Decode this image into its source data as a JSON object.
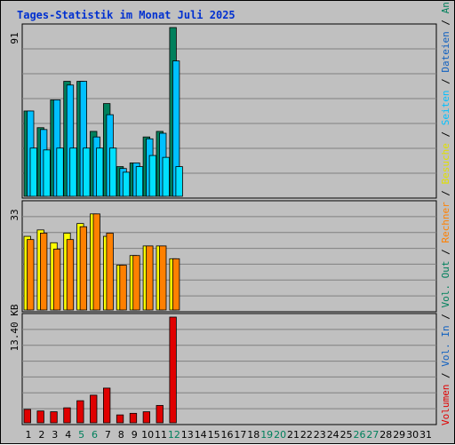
{
  "chart_data": {
    "type": "bar",
    "title": "Tages-Statistik im Monat Juli 2025",
    "categories": [
      "1",
      "2",
      "3",
      "4",
      "5",
      "6",
      "7",
      "8",
      "9",
      "10",
      "11",
      "12",
      "13",
      "14",
      "15",
      "16",
      "17",
      "18",
      "19",
      "20",
      "21",
      "22",
      "23",
      "24",
      "25",
      "26",
      "27",
      "28",
      "29",
      "30",
      "31"
    ],
    "weekend_days": [
      "5",
      "6",
      "12",
      "19",
      "20",
      "26",
      "27"
    ],
    "panels": [
      {
        "id": "requests",
        "axis_max_label": "91",
        "ylim": [
          0,
          91
        ],
        "grid": true,
        "series": [
          {
            "name": "Anfragen",
            "color": "#00805c",
            "values": [
              46,
              37,
              52,
              62,
              62,
              35,
              50,
              16,
              18,
              32,
              35,
              91,
              null,
              null,
              null,
              null,
              null,
              null,
              null,
              null,
              null,
              null,
              null,
              null,
              null,
              null,
              null,
              null,
              null,
              null,
              null
            ]
          },
          {
            "name": "Dateien",
            "color": "#00c0ff",
            "values": [
              46,
              36,
              52,
              60,
              62,
              32,
              44,
              15,
              18,
              31,
              34,
              73,
              null,
              null,
              null,
              null,
              null,
              null,
              null,
              null,
              null,
              null,
              null,
              null,
              null,
              null,
              null,
              null,
              null,
              null,
              null
            ]
          },
          {
            "name": "Seiten",
            "color": "#00e0ff",
            "values": [
              26,
              25,
              26,
              26,
              26,
              26,
              26,
              13,
              16,
              22,
              21,
              16,
              null,
              null,
              null,
              null,
              null,
              null,
              null,
              null,
              null,
              null,
              null,
              null,
              null,
              null,
              null,
              null,
              null,
              null,
              null
            ]
          }
        ]
      },
      {
        "id": "visits",
        "axis_max_label": "33",
        "ylim": [
          0,
          33
        ],
        "grid": true,
        "series": [
          {
            "name": "Besuche",
            "color": "#ffff00",
            "values": [
              23,
              25,
              21,
              24,
              27,
              30,
              23,
              14,
              17,
              20,
              20,
              16,
              null,
              null,
              null,
              null,
              null,
              null,
              null,
              null,
              null,
              null,
              null,
              null,
              null,
              null,
              null,
              null,
              null,
              null,
              null
            ]
          },
          {
            "name": "Rechner",
            "color": "#ff8000",
            "values": [
              22,
              24,
              19,
              22,
              26,
              30,
              24,
              14,
              17,
              20,
              20,
              16,
              null,
              null,
              null,
              null,
              null,
              null,
              null,
              null,
              null,
              null,
              null,
              null,
              null,
              null,
              null,
              null,
              null,
              null,
              null
            ]
          }
        ]
      },
      {
        "id": "volume",
        "axis_max_label": "13.40 KB",
        "ylim": [
          0,
          13.4
        ],
        "grid": true,
        "series": [
          {
            "name": "Volumen",
            "color": "#e00000",
            "values": [
              1.7,
              1.5,
              1.4,
              1.9,
              2.8,
              3.5,
              4.4,
              1.0,
              1.2,
              1.4,
              2.2,
              13.4,
              null,
              null,
              null,
              null,
              null,
              null,
              null,
              null,
              null,
              null,
              null,
              null,
              null,
              null,
              null,
              null,
              null,
              null,
              null
            ]
          }
        ]
      }
    ],
    "legend": {
      "placement": "right-vertical",
      "items": [
        {
          "text": "Volumen",
          "color": "#e00000"
        },
        {
          "text": "Vol. In",
          "color": "#1060c0"
        },
        {
          "text": "Vol. Out",
          "color": "#00805c"
        },
        {
          "text": "Rechner",
          "color": "#ff8000"
        },
        {
          "text": "Besuche",
          "color": "#e0e000"
        },
        {
          "text": "Seiten",
          "color": "#00c0ff"
        },
        {
          "text": "Dateien",
          "color": "#1060c0"
        },
        {
          "text": "Anfragen",
          "color": "#00805c"
        }
      ],
      "separator": "/"
    },
    "colors": {
      "background": "#c0c0c0",
      "grid": "#808080",
      "title": "#0030d0",
      "axis_label": "#000000",
      "weekend_label": "#00805c"
    }
  }
}
